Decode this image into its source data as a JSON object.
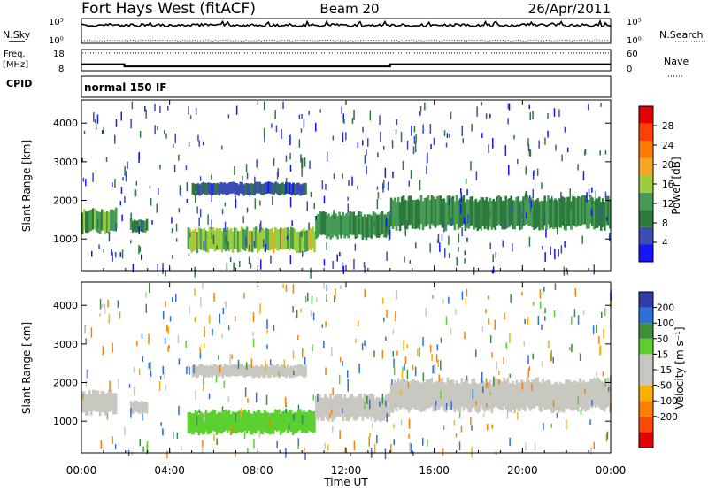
{
  "header": {
    "station": "Fort Hays West (fitACF)",
    "beam": "Beam 20",
    "date": "26/Apr/2011"
  },
  "status_panels": {
    "nsky_label": "N.Sky",
    "nsearch_label": "N.Search",
    "noise_tick_high": "10^5",
    "noise_tick_low": "10^0",
    "freq_label_1": "Freq.",
    "freq_label_2": "[MHz]",
    "freq_ticks": [
      "18",
      "8"
    ],
    "nave_label": "Nave",
    "nave_ticks": [
      "60",
      "0"
    ],
    "cpid_label": "CPID",
    "cpid_value": "normal 150 IF",
    "freq_trace": [
      {
        "t": 0.0,
        "mhz": 11.0
      },
      {
        "t": 1.95,
        "mhz": 11.0
      },
      {
        "t": 1.95,
        "mhz": 9.6
      },
      {
        "t": 14.0,
        "mhz": 9.6
      },
      {
        "t": 14.0,
        "mhz": 11.0
      },
      {
        "t": 24.0,
        "mhz": 11.0
      }
    ]
  },
  "colorbars": {
    "power": {
      "label": "Power [dB]",
      "colors": [
        "#1414ff",
        "#3b4cb4",
        "#2e7a3e",
        "#479c55",
        "#9ccd3c",
        "#f5a623",
        "#ff7a00",
        "#ff4000",
        "#e60000"
      ],
      "ticks": [
        "4",
        "8",
        "12",
        "16",
        "20",
        "24",
        "28"
      ]
    },
    "velocity": {
      "label": "Velocity [m s⁻¹]",
      "colors": [
        "#2e3ea6",
        "#2f6fd8",
        "#3d8f3d",
        "#5cd02e",
        "#c8c8c0",
        "#c8c8c0",
        "#f5b000",
        "#ff8000",
        "#ff4800",
        "#e60000"
      ],
      "ticks": [
        "200",
        "100",
        "50",
        "15",
        "-15",
        "-50",
        "-100",
        "-200"
      ]
    }
  },
  "chart_data": [
    {
      "type": "heatmap",
      "title": "Beam 20",
      "quantity": "Power",
      "xlabel": "",
      "ylabel": "Slant Range [km]",
      "xlim": [
        0,
        24
      ],
      "ylim": [
        180,
        4600
      ],
      "x_ticks": [
        "00:00",
        "04:00",
        "08:00",
        "12:00",
        "16:00",
        "20:00",
        "00:00"
      ],
      "y_ticks": [
        1000,
        2000,
        3000,
        4000
      ],
      "bands": [
        {
          "t0": 0.0,
          "t1": 1.6,
          "r_lo": 1200,
          "r_hi": 1750,
          "value_db": 12
        },
        {
          "t0": 2.2,
          "t1": 3.0,
          "r_lo": 1200,
          "r_hi": 1500,
          "value_db": 9
        },
        {
          "t0": 4.8,
          "t1": 10.6,
          "r_lo": 700,
          "r_hi": 1250,
          "value_db": 15
        },
        {
          "t0": 5.0,
          "t1": 10.2,
          "r_lo": 2150,
          "r_hi": 2450,
          "value_db": 6
        },
        {
          "t0": 10.6,
          "t1": 14.0,
          "r_lo": 1050,
          "r_hi": 1650,
          "value_db": 11
        },
        {
          "t0": 14.0,
          "t1": 24.0,
          "r_lo": 1300,
          "r_hi": 2050,
          "value_db": 10
        }
      ]
    },
    {
      "type": "heatmap",
      "quantity": "Velocity",
      "xlabel": "Time UT",
      "ylabel": "Slant Range [km]",
      "xlim": [
        0,
        24
      ],
      "ylim": [
        180,
        4600
      ],
      "x_ticks": [
        "00:00",
        "04:00",
        "08:00",
        "12:00",
        "16:00",
        "20:00",
        "00:00"
      ],
      "y_ticks": [
        1000,
        2000,
        3000,
        4000
      ],
      "bands": [
        {
          "t0": 0.0,
          "t1": 1.6,
          "r_lo": 1200,
          "r_hi": 1750,
          "value_ms": 0
        },
        {
          "t0": 2.2,
          "t1": 3.0,
          "r_lo": 1200,
          "r_hi": 1500,
          "value_ms": -40
        },
        {
          "t0": 4.8,
          "t1": 10.6,
          "r_lo": 700,
          "r_hi": 1250,
          "value_ms": 40
        },
        {
          "t0": 5.0,
          "t1": 10.2,
          "r_lo": 2150,
          "r_hi": 2450,
          "value_ms": 0
        },
        {
          "t0": 10.6,
          "t1": 14.0,
          "r_lo": 1050,
          "r_hi": 1650,
          "value_ms": 0
        },
        {
          "t0": 14.0,
          "t1": 24.0,
          "r_lo": 1300,
          "r_hi": 2050,
          "value_ms": 0
        }
      ]
    }
  ]
}
